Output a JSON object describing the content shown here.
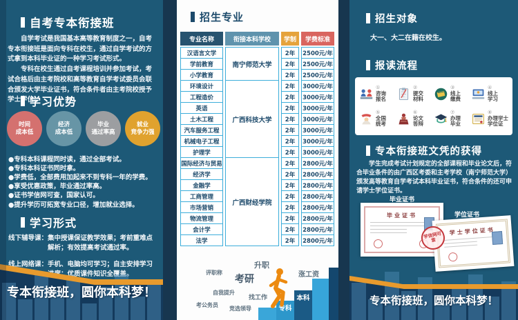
{
  "left": {
    "title": "自考专本衔接班",
    "intro": [
      "自学考试是我国基本高等教育制度之一，自考专本衔接班是面向专科在校生，通过自学考试的方式拿到本科毕业证的一种学习考试形式。",
      "专科在校生通过自考课程培训并参加考试，考试合格后由主考院校和高等教育自学考试委员会联合颁发大学毕业证书，符合条件者由主考院校授予学士学位。"
    ],
    "advantages_title": "学习优势",
    "circles": [
      {
        "lines": [
          "时间",
          "成本低"
        ],
        "color": "#d4716f"
      },
      {
        "lines": [
          "经济",
          "成本低"
        ],
        "color": "#6795a6"
      },
      {
        "lines": [
          "毕业",
          "通过率高"
        ],
        "color": "#9c9ea1"
      },
      {
        "lines": [
          "就业",
          "竞争力强"
        ],
        "color": "#e0a22e"
      }
    ],
    "points": [
      "专科本科课程同时读，通过全部考试。",
      "专科本科证书同时拿。",
      "学费低，全部费用加起来不到专科一年的学费。",
      "享受优惠政策，毕业通过率高。",
      "证书学信网可查，国家认可。",
      "提升学历可拓宽专业口径，增加就业选择。"
    ],
    "form_title": "学习形式",
    "forms": [
      {
        "label": "线下辅导课：",
        "text": "集中授课保证教学效果；考前重难点解析；有效提高考试通过率。"
      },
      {
        "label": "线上网络课：",
        "text": "手机、电脑均可学习；自主安排学习进度；优质课件知识全覆盖。"
      }
    ],
    "banner": "专本衔接班，圆你本科梦！"
  },
  "middle": {
    "title": "招生专业",
    "table": {
      "headers": [
        "专业名称",
        "衔接本科学校",
        "学制",
        "学费标准"
      ],
      "header_colors": [
        "#27536f",
        "#5f93ad",
        "#e5a33c",
        "#d9655f"
      ],
      "schools": [
        {
          "name": "南宁师范大学",
          "span": 3
        },
        {
          "name": "广西科技大学",
          "span": 7
        },
        {
          "name": "广西财经学院",
          "span": 8
        }
      ],
      "rows": [
        {
          "major": "汉语言文学",
          "year": "2年",
          "fee": "2500元/年"
        },
        {
          "major": "学前教育",
          "year": "2年",
          "fee": "2500元/年"
        },
        {
          "major": "小学教育",
          "year": "2年",
          "fee": "2500元/年"
        },
        {
          "major": "环境设计",
          "year": "2年",
          "fee": "3000元/年"
        },
        {
          "major": "工程造价",
          "year": "2年",
          "fee": "3000元/年"
        },
        {
          "major": "英语",
          "year": "2年",
          "fee": "3000元/年"
        },
        {
          "major": "土木工程",
          "year": "2年",
          "fee": "3000元/年"
        },
        {
          "major": "汽车服务工程",
          "year": "2年",
          "fee": "3000元/年"
        },
        {
          "major": "机械电子工程",
          "year": "2年",
          "fee": "3000元/年"
        },
        {
          "major": "护理学",
          "year": "2年",
          "fee": "3000元/年"
        },
        {
          "major": "国际经济与贸易",
          "year": "2年",
          "fee": "2800元/年"
        },
        {
          "major": "经济学",
          "year": "2年",
          "fee": "2800元/年"
        },
        {
          "major": "金融学",
          "year": "2年",
          "fee": "2800元/年"
        },
        {
          "major": "工商管理",
          "year": "2年",
          "fee": "2800元/年"
        },
        {
          "major": "市场营销",
          "year": "2年",
          "fee": "2800元/年"
        },
        {
          "major": "物流管理",
          "year": "2年",
          "fee": "2800元/年"
        },
        {
          "major": "会计学",
          "year": "2年",
          "fee": "2800元/年"
        },
        {
          "major": "法学",
          "year": "2年",
          "fee": "2800元/年"
        }
      ]
    },
    "stairs": {
      "float_labels": [
        "评职称",
        "考研",
        "升职",
        "涨工资",
        "自我提升",
        "找工作",
        "考公务员",
        "竞选领导"
      ],
      "step_labels": [
        "专科",
        "本科"
      ]
    }
  },
  "right": {
    "target_title": "招生对象",
    "target_text": "大一、大二在籍在校生。",
    "process_title": "报读流程",
    "steps": [
      {
        "num": "①",
        "lines": [
          "咨询",
          "报名"
        ],
        "icon": "consult-icon"
      },
      {
        "num": "②",
        "lines": [
          "提交",
          "材料"
        ],
        "icon": "materials-icon"
      },
      {
        "num": "③",
        "lines": [
          "线上",
          "缴费"
        ],
        "icon": "payment-icon"
      },
      {
        "num": "④",
        "lines": [
          "线上",
          "学习"
        ],
        "icon": "online-study-icon"
      },
      {
        "num": "⑤",
        "lines": [
          "全国",
          "统考"
        ],
        "icon": "exam-icon"
      },
      {
        "num": "⑥",
        "lines": [
          "论文",
          "答辩"
        ],
        "icon": "defense-icon"
      },
      {
        "num": "⑦",
        "lines": [
          "办理",
          "毕业"
        ],
        "icon": "graduation-icon"
      },
      {
        "num": "⑧",
        "lines": [
          "办理学士",
          "学位证"
        ],
        "icon": "degree-icon"
      }
    ],
    "diploma_title": "专本衔接班文凭的获得",
    "diploma_text": "学生完成考试计划规定的全部课程和毕业论文后，符合毕业条件的由广西区考委和主考学校（南宁师范大学）颁发高等教育自学考试本科毕业证书，符合条件的还可申请学士学位证书。",
    "cert1": {
      "label": "毕业证书",
      "inner_title": "毕业证书"
    },
    "cert2": {
      "label": "学位证书",
      "inner_title": "学士学位证书"
    },
    "stamp": "学信网可查",
    "banner": "专本衔接班，圆你本科梦！"
  },
  "colors": {
    "panel_teal": "#1d5977",
    "fold_navy": "#17364f",
    "accent_orange": "#e89a2d",
    "bottom_navy": "#143a5c",
    "table_border": "#3cadda"
  }
}
